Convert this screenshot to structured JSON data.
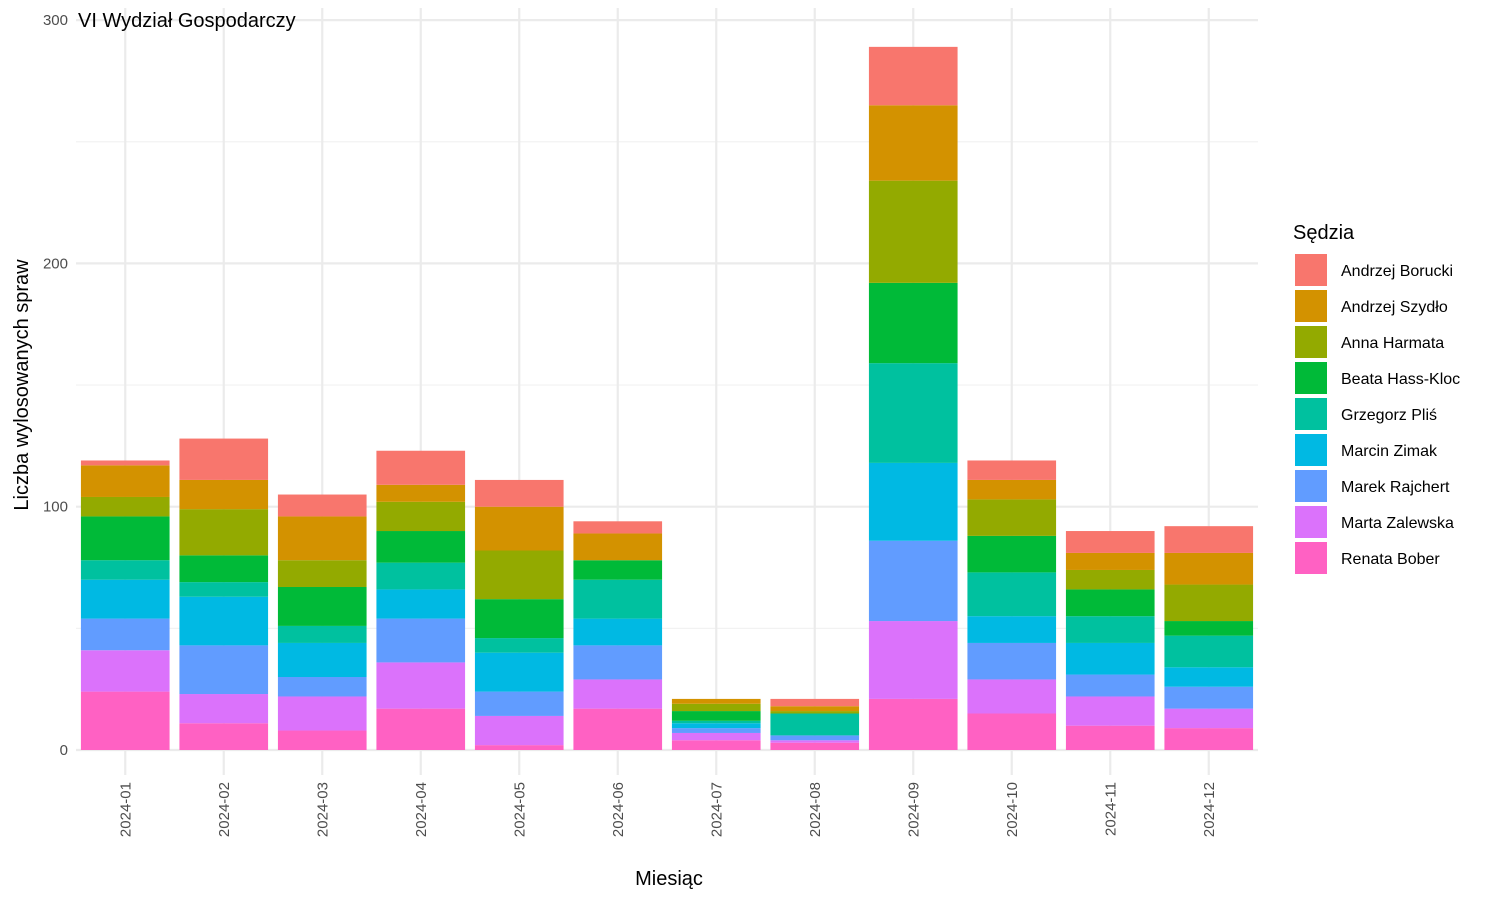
{
  "chart_data": {
    "type": "bar",
    "stacked": true,
    "facet_title": "VI Wydział Gospodarczy",
    "xlabel": "Miesiąc",
    "ylabel": "Liczba wylosowanych spraw",
    "ylim": [
      0,
      300
    ],
    "yticks": [
      0,
      100,
      200,
      300
    ],
    "grid": true,
    "legend_title": "Sędzia",
    "legend_position": "right",
    "categories": [
      "2024-01",
      "2024-02",
      "2024-03",
      "2024-04",
      "2024-05",
      "2024-06",
      "2024-07",
      "2024-08",
      "2024-09",
      "2024-10",
      "2024-11",
      "2024-12"
    ],
    "series": [
      {
        "name": "Renata Bober",
        "color": "#FF61C3",
        "values": [
          24,
          11,
          8,
          17,
          2,
          17,
          4,
          3,
          21,
          15,
          10,
          9
        ]
      },
      {
        "name": "Marta Zalewska",
        "color": "#DB72FB",
        "values": [
          17,
          12,
          14,
          19,
          12,
          12,
          3,
          1,
          32,
          14,
          12,
          8
        ]
      },
      {
        "name": "Marek Rajchert",
        "color": "#619CFF",
        "values": [
          13,
          20,
          8,
          18,
          10,
          14,
          2,
          2,
          33,
          15,
          9,
          9
        ]
      },
      {
        "name": "Marcin Zimak",
        "color": "#00B9E3",
        "values": [
          16,
          20,
          14,
          12,
          16,
          11,
          2,
          0,
          32,
          11,
          13,
          8
        ]
      },
      {
        "name": "Grzegorz Pliś",
        "color": "#00C19F",
        "values": [
          8,
          6,
          7,
          11,
          6,
          16,
          1,
          9,
          41,
          18,
          11,
          13
        ]
      },
      {
        "name": "Beata Hass-Kloc",
        "color": "#00BA38",
        "values": [
          18,
          11,
          16,
          13,
          16,
          8,
          4,
          0,
          33,
          15,
          11,
          6
        ]
      },
      {
        "name": "Anna Harmata",
        "color": "#93AA00",
        "values": [
          8,
          19,
          11,
          12,
          20,
          0,
          3,
          1,
          42,
          15,
          8,
          15
        ]
      },
      {
        "name": "Andrzej Szydło",
        "color": "#D39200",
        "values": [
          13,
          12,
          18,
          7,
          18,
          11,
          2,
          2,
          31,
          8,
          7,
          13
        ]
      },
      {
        "name": "Andrzej Borucki",
        "color": "#F8766D",
        "values": [
          2,
          17,
          9,
          14,
          11,
          5,
          0,
          3,
          24,
          8,
          9,
          11
        ]
      }
    ],
    "legend_order": [
      "Andrzej Borucki",
      "Andrzej Szydło",
      "Anna Harmata",
      "Beata Hass-Kloc",
      "Grzegorz Pliś",
      "Marcin Zimak",
      "Marek Rajchert",
      "Marta Zalewska",
      "Renata Bober"
    ]
  }
}
